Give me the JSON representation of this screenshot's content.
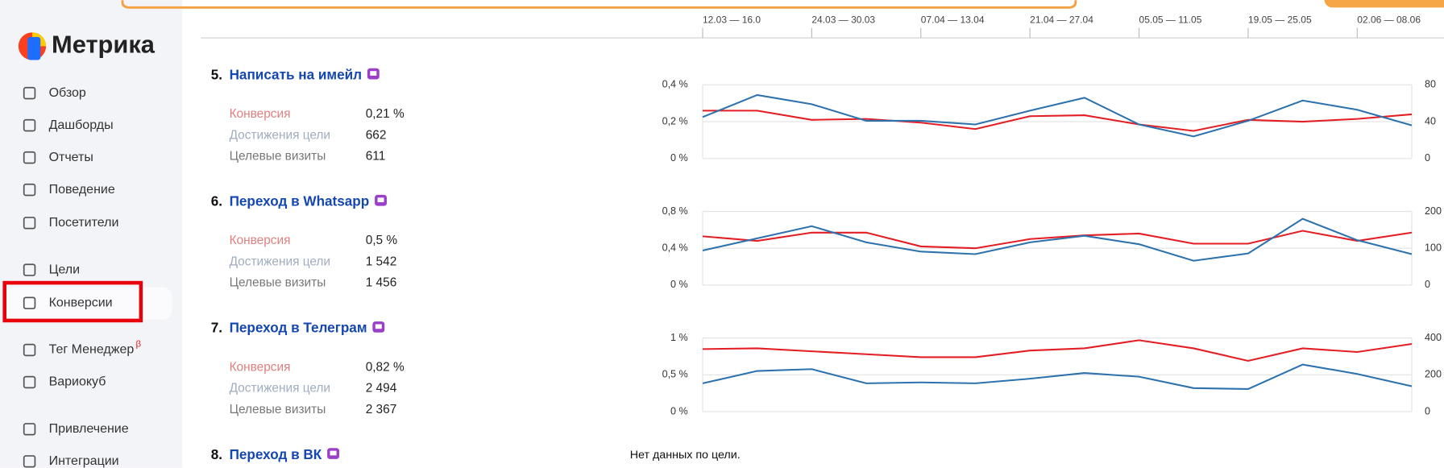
{
  "sidebar": {
    "logo": "Метрика",
    "items": [
      {
        "label": "Обзор"
      },
      {
        "label": "Дашборды"
      },
      {
        "label": "Отчеты"
      },
      {
        "label": "Поведение"
      },
      {
        "label": "Посетители"
      },
      {
        "label": "Цели"
      },
      {
        "label": "Конверсии"
      },
      {
        "label": "Тег Менеджер",
        "badge": "β"
      },
      {
        "label": "Вариокуб"
      },
      {
        "label": "Привлечение"
      },
      {
        "label": "Интеграции"
      }
    ]
  },
  "timeline": {
    "categories": [
      "12.03 — 16.0",
      null,
      "24.03 — 30.03",
      null,
      "07.04 — 13.04",
      null,
      "21.04 — 27.04",
      null,
      "05.05 — 11.05",
      null,
      "19.05 — 25.05",
      null,
      "02.06 — 08.06",
      null
    ]
  },
  "goals": [
    {
      "number": "5.",
      "title": "Написать на имейл",
      "metrics": [
        {
          "label": "Конверсия",
          "value": "0,21 %"
        },
        {
          "label": "Достижения цели",
          "value": "662"
        },
        {
          "label": "Целевые визиты",
          "value": "611"
        }
      ],
      "chart": {
        "type": "line",
        "ylim": [
          0,
          0.4
        ],
        "yticks": [
          {
            "value": 0,
            "label": "0 %"
          },
          {
            "value": 0.2,
            "label": "0,2 %"
          },
          {
            "value": 0.4,
            "label": "0,4 %"
          }
        ],
        "y2lim": [
          0,
          80
        ],
        "y2ticks": [
          0,
          40,
          80
        ],
        "series": [
          {
            "color": "#e31e24",
            "values": [
              0.26,
              0.26,
              0.21,
              0.215,
              0.195,
              0.16,
              0.23,
              0.235,
              0.185,
              0.15,
              0.21,
              0.2,
              0.215,
              0.24
            ]
          },
          {
            "color": "#2d72ad",
            "axis": "y2",
            "values": [
              45,
              69,
              59,
              41,
              41,
              37,
              52,
              66,
              37,
              24,
              41,
              63,
              53,
              36
            ]
          }
        ]
      }
    },
    {
      "number": "6.",
      "title": "Переход в Whatsapp",
      "metrics": [
        {
          "label": "Конверсия",
          "value": "0,5 %"
        },
        {
          "label": "Достижения цели",
          "value": "1 542"
        },
        {
          "label": "Целевые визиты",
          "value": "1 456"
        }
      ],
      "chart": {
        "type": "line",
        "ylim": [
          0,
          0.8
        ],
        "yticks": [
          {
            "value": 0,
            "label": "0 %"
          },
          {
            "value": 0.4,
            "label": "0,4 %"
          },
          {
            "value": 0.8,
            "label": "0,8 %"
          }
        ],
        "y2lim": [
          0,
          200
        ],
        "y2ticks": [
          0,
          100,
          200
        ],
        "series": [
          {
            "color": "#e31e24",
            "values": [
              0.53,
              0.48,
              0.57,
              0.57,
              0.42,
              0.4,
              0.5,
              0.54,
              0.56,
              0.45,
              0.45,
              0.59,
              0.48,
              0.57
            ]
          },
          {
            "color": "#2d72ad",
            "axis": "y2",
            "values": [
              94,
              127,
              160,
              116,
              91,
              84,
              116,
              134,
              111,
              66,
              86,
              180,
              122,
              84
            ]
          }
        ]
      }
    },
    {
      "number": "7.",
      "title": "Переход в Телеграм",
      "metrics": [
        {
          "label": "Конверсия",
          "value": "0,82 %"
        },
        {
          "label": "Достижения цели",
          "value": "2 494"
        },
        {
          "label": "Целевые визиты",
          "value": "2 367"
        }
      ],
      "chart": {
        "type": "line",
        "ylim": [
          0,
          1
        ],
        "yticks": [
          {
            "value": 0,
            "label": "0 %"
          },
          {
            "value": 0.5,
            "label": "0,5 %"
          },
          {
            "value": 1,
            "label": "1 %"
          }
        ],
        "y2lim": [
          0,
          400
        ],
        "y2ticks": [
          0,
          200,
          400
        ],
        "series": [
          {
            "color": "#e31e24",
            "values": [
              0.85,
              0.86,
              0.82,
              0.78,
              0.74,
              0.74,
              0.83,
              0.86,
              0.97,
              0.86,
              0.69,
              0.86,
              0.81,
              0.92
            ]
          },
          {
            "color": "#2d72ad",
            "axis": "y2",
            "values": [
              154,
              221,
              231,
              154,
              159,
              154,
              179,
              210,
              190,
              128,
              123,
              256,
              205,
              138
            ]
          }
        ]
      }
    },
    {
      "number": "8.",
      "title": "Переход в ВК",
      "no_data": "Нет данных по цели."
    }
  ]
}
